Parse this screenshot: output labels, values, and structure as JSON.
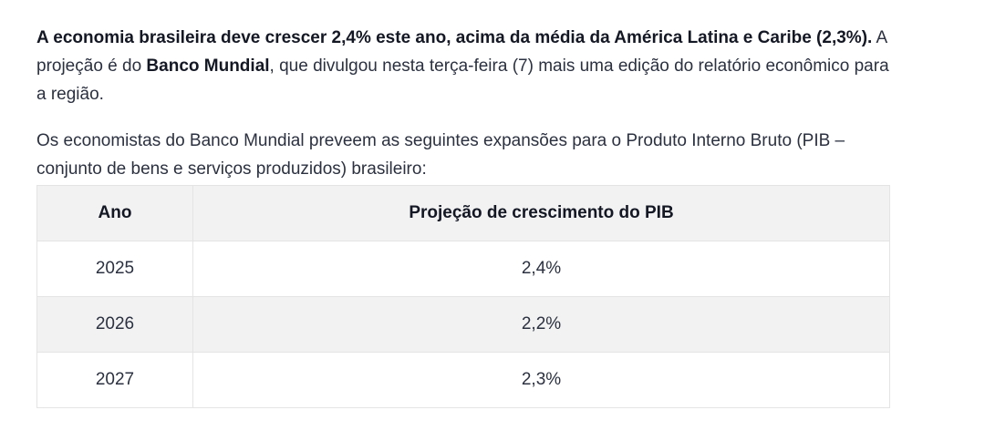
{
  "intro": {
    "bold_1": "A economia brasileira deve crescer 2,4% este ano, acima da média da América Latina e Caribe (2,3%).",
    "text_1": " A projeção é do ",
    "bold_2": "Banco Mundial",
    "text_2": ", que divulgou nesta terça-feira (7) mais uma edição do relatório econômico para a região."
  },
  "lead": "Os economistas do Banco Mundial preveem as seguintes expansões para o Produto Interno Bruto (PIB – conjunto de bens e serviços produzidos) brasileiro:",
  "table": {
    "headers": [
      "Ano",
      "Projeção de crescimento do PIB"
    ],
    "rows": [
      [
        "2025",
        "2,4%"
      ],
      [
        "2026",
        "2,2%"
      ],
      [
        "2027",
        "2,3%"
      ]
    ]
  }
}
